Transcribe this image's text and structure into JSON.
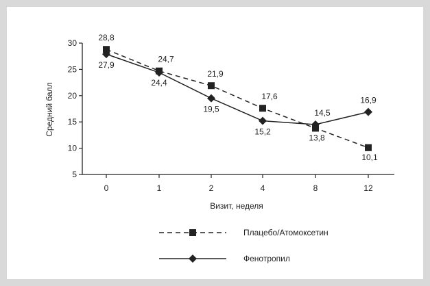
{
  "chart_data": {
    "type": "line",
    "title": "",
    "xlabel": "Визит, неделя",
    "ylabel": "Средний балл",
    "categories": [
      "0",
      "1",
      "2",
      "4",
      "8",
      "12"
    ],
    "ylim": [
      5,
      30
    ],
    "yticks": [
      "5",
      "10",
      "15",
      "20",
      "25",
      "30"
    ],
    "grid": false,
    "legend": "bottom",
    "series": [
      {
        "name": "Плацебо/Атомоксетин",
        "style": "dashed",
        "marker": "square",
        "color": "#222222",
        "values": [
          28.8,
          24.7,
          21.9,
          17.6,
          13.8,
          10.1
        ],
        "labels": [
          "28,8",
          "24,7",
          "21,9",
          "17,6",
          "13,8",
          "10,1"
        ]
      },
      {
        "name": "Фенотропил",
        "style": "solid",
        "marker": "diamond",
        "color": "#222222",
        "values": [
          27.9,
          24.4,
          19.5,
          15.2,
          14.5,
          16.9
        ],
        "labels": [
          "27,9",
          "24,4",
          "19,5",
          "15,2",
          "14,5",
          "16,9"
        ]
      }
    ]
  }
}
